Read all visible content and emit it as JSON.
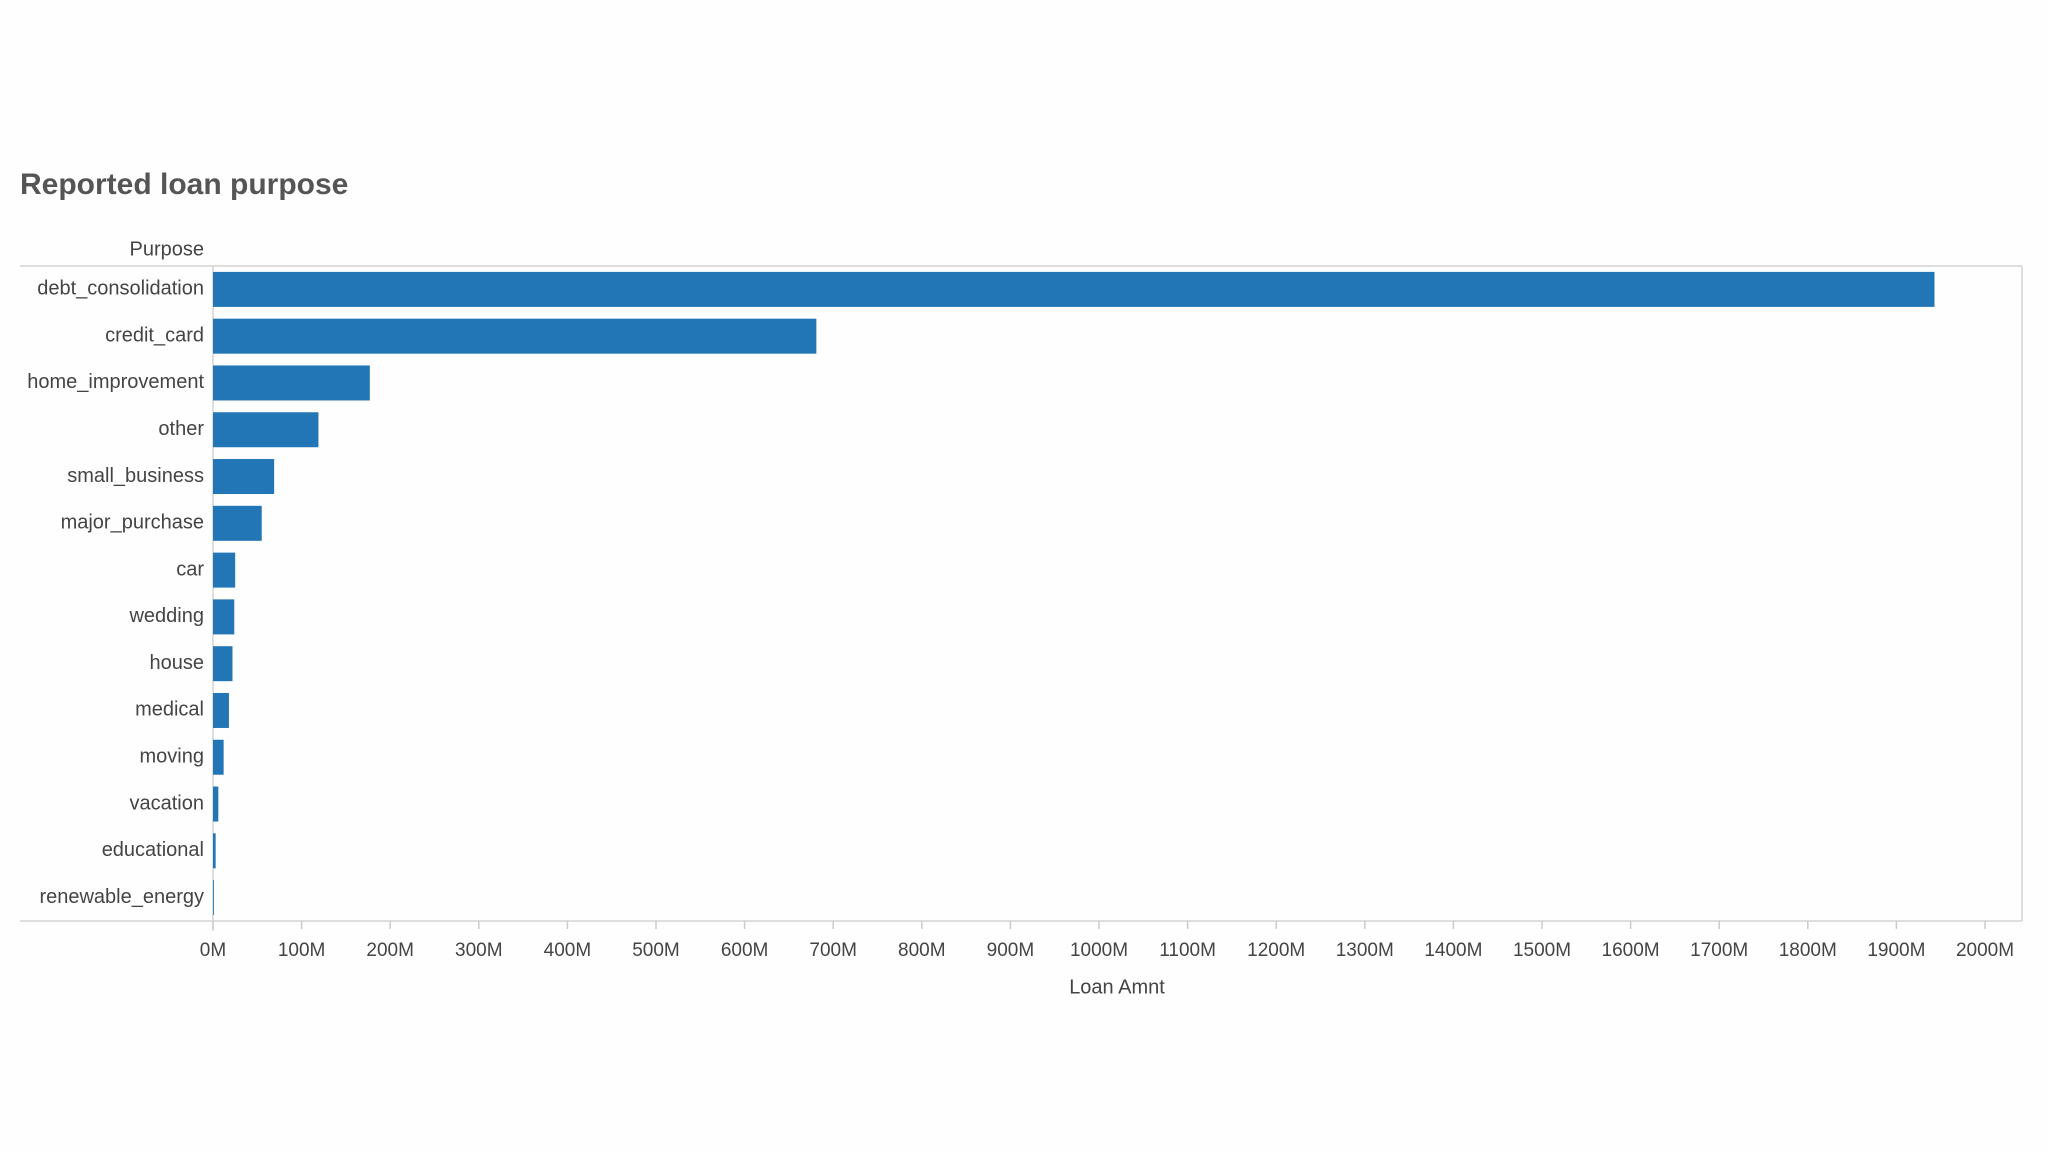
{
  "chart_data": {
    "type": "bar",
    "orientation": "horizontal",
    "title": "Reported loan purpose",
    "y_label": "Purpose",
    "x_label": "Loan Amnt",
    "categories": [
      "debt_consolidation",
      "credit_card",
      "home_improvement",
      "other",
      "small_business",
      "major_purchase",
      "car",
      "wedding",
      "house",
      "medical",
      "moving",
      "vacation",
      "educational",
      "renewable_energy"
    ],
    "values": [
      1943,
      681,
      177,
      119,
      69,
      55,
      25,
      24,
      22,
      18,
      12,
      6,
      3,
      1
    ],
    "color": "#2376b5",
    "xlim": [
      0,
      2050
    ],
    "xticks": [
      {
        "value": 0,
        "label": "0M"
      },
      {
        "value": 100,
        "label": "100M"
      },
      {
        "value": 200,
        "label": "200M"
      },
      {
        "value": 300,
        "label": "300M"
      },
      {
        "value": 400,
        "label": "400M"
      },
      {
        "value": 500,
        "label": "500M"
      },
      {
        "value": 600,
        "label": "600M"
      },
      {
        "value": 700,
        "label": "700M"
      },
      {
        "value": 800,
        "label": "800M"
      },
      {
        "value": 900,
        "label": "900M"
      },
      {
        "value": 1000,
        "label": "1000M"
      },
      {
        "value": 1100,
        "label": "1100M"
      },
      {
        "value": 1200,
        "label": "1200M"
      },
      {
        "value": 1300,
        "label": "1300M"
      },
      {
        "value": 1400,
        "label": "1400M"
      },
      {
        "value": 1500,
        "label": "1500M"
      },
      {
        "value": 1600,
        "label": "1600M"
      },
      {
        "value": 1700,
        "label": "1700M"
      },
      {
        "value": 1800,
        "label": "1800M"
      },
      {
        "value": 1900,
        "label": "1900M"
      },
      {
        "value": 2000,
        "label": "2000M"
      }
    ],
    "grid": false
  }
}
